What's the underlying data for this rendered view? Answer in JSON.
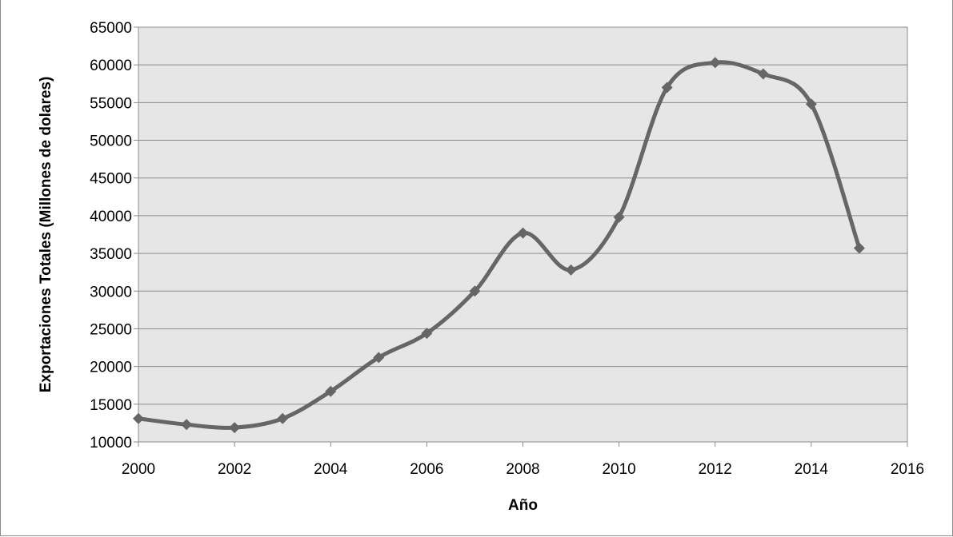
{
  "chart_data": {
    "type": "line",
    "title": "",
    "xlabel": "Año",
    "ylabel": "Exportaciones Totales (Millones de dolares)",
    "xlim": [
      2000,
      2016
    ],
    "ylim": [
      10000,
      65000
    ],
    "x_ticks": [
      "2000",
      "2002",
      "2004",
      "2006",
      "2008",
      "2010",
      "2012",
      "2014",
      "2016"
    ],
    "y_ticks": [
      "10000",
      "15000",
      "20000",
      "25000",
      "30000",
      "35000",
      "40000",
      "45000",
      "50000",
      "55000",
      "60000",
      "65000"
    ],
    "grid": "horizontal",
    "smooth": true,
    "marker": "diamond",
    "colors": {
      "line": "#666666",
      "plot_background": "#e6e6e6",
      "gridline": "#8c8c8c"
    },
    "series": [
      {
        "x": [
          2000,
          2001,
          2002,
          2003,
          2004,
          2005,
          2006,
          2007,
          2008,
          2009,
          2010,
          2011,
          2012,
          2013,
          2014,
          2015
        ],
        "values": [
          13100,
          12300,
          11900,
          13100,
          16700,
          21200,
          24400,
          30000,
          37700,
          32800,
          39800,
          57000,
          60300,
          58800,
          54800,
          35700
        ]
      }
    ]
  }
}
